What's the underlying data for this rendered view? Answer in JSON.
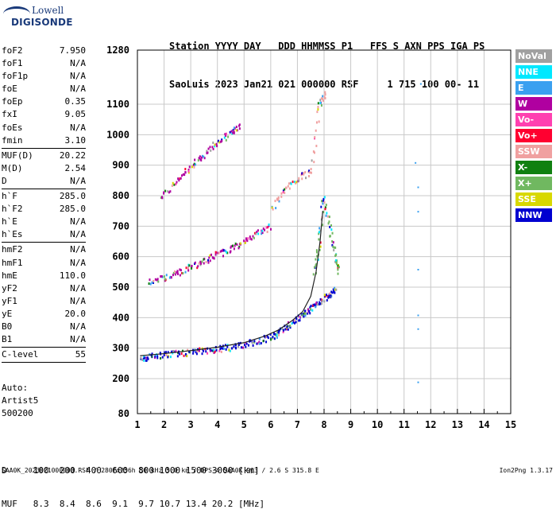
{
  "logo": {
    "line1": "Lowell",
    "line2": "DIGISONDE"
  },
  "header": {
    "line1": "Station YYYY DAY   DDD HHMMSS P1   FFS S AXN PPS IGA PS",
    "line2": "SaoLuis 2023 Jan21 021 000000 RSF     1 715 100 00- 11"
  },
  "params": {
    "group1": [
      {
        "name": "foF2",
        "value": "7.950"
      },
      {
        "name": "foF1",
        "value": "N/A"
      },
      {
        "name": "foF1p",
        "value": "N/A"
      },
      {
        "name": "foE",
        "value": "N/A"
      },
      {
        "name": "foEp",
        "value": "0.35"
      },
      {
        "name": "fxI",
        "value": "9.05"
      },
      {
        "name": "foEs",
        "value": "N/A"
      },
      {
        "name": "fmin",
        "value": "3.10"
      }
    ],
    "group2": [
      {
        "name": "MUF(D)",
        "value": "20.22"
      },
      {
        "name": "M(D)",
        "value": "2.54"
      },
      {
        "name": "D",
        "value": "N/A"
      }
    ],
    "group3": [
      {
        "name": "h`F",
        "value": "285.0"
      },
      {
        "name": "h`F2",
        "value": "285.0"
      },
      {
        "name": "h`E",
        "value": "N/A"
      },
      {
        "name": "h`Es",
        "value": "N/A"
      }
    ],
    "group4": [
      {
        "name": "hmF2",
        "value": "N/A"
      },
      {
        "name": "hmF1",
        "value": "N/A"
      },
      {
        "name": "hmE",
        "value": "110.0"
      },
      {
        "name": "yF2",
        "value": "N/A"
      },
      {
        "name": "yF1",
        "value": "N/A"
      },
      {
        "name": "yE",
        "value": "20.0"
      },
      {
        "name": "B0",
        "value": "N/A"
      },
      {
        "name": "B1",
        "value": "N/A"
      }
    ],
    "group5": [
      {
        "name": "C-level",
        "value": "55"
      }
    ]
  },
  "auto": {
    "line1": "Auto:",
    "line2": "Artist5",
    "line3": "500200"
  },
  "legend": [
    {
      "label": "NoVal",
      "color": "#a0a0a0"
    },
    {
      "label": "NNE",
      "color": "#00e8ff"
    },
    {
      "label": "E",
      "color": "#3aa0f0"
    },
    {
      "label": "W",
      "color": "#b000a0"
    },
    {
      "label": "Vo-",
      "color": "#ff40b0"
    },
    {
      "label": "Vo+",
      "color": "#ff0030"
    },
    {
      "label": "SSW",
      "color": "#f0a0a0"
    },
    {
      "label": "X-",
      "color": "#108010"
    },
    {
      "label": "X+",
      "color": "#70b860"
    },
    {
      "label": "SSE",
      "color": "#d8d800"
    },
    {
      "label": "NNW",
      "color": "#0000d0"
    }
  ],
  "muf_table": {
    "d_row": "D     100  200  400  600  800 1000 1500 3000 [km]",
    "muf_row": "MUF   8.3  8.4  8.6  9.1  9.7 10.7 13.4 20.2 [MHz]"
  },
  "footer": {
    "left": "SAA0K_2023021000000.RSF / 280fx256h 50 kHz 5.0 km / DPS-4 SAA0K 903 / 2.6 S 315.8 E",
    "right": "Ion2Png 1.3.17"
  },
  "chart_data": {
    "type": "scatter",
    "xlim": [
      1,
      15
    ],
    "ylim": [
      80,
      1280
    ],
    "x_ticks": [
      1,
      2,
      3,
      4,
      5,
      6,
      7,
      8,
      9,
      10,
      11,
      12,
      13,
      14,
      15
    ],
    "y_ticks": [
      80,
      200,
      300,
      400,
      500,
      600,
      700,
      800,
      900,
      1000,
      1100,
      1280
    ],
    "y_tick_labels": [
      "80",
      "200",
      "300",
      "400",
      "500",
      "600",
      "700",
      "800",
      "900",
      "1000",
      "1100",
      "1280"
    ],
    "grid": true,
    "traces": [
      {
        "points": [
          [
            1.1,
            270
          ],
          [
            1.5,
            275
          ],
          [
            2.0,
            280
          ],
          [
            2.5,
            285
          ],
          [
            3.0,
            290
          ],
          [
            3.5,
            295
          ],
          [
            4.0,
            300
          ],
          [
            4.5,
            305
          ],
          [
            5.0,
            315
          ],
          [
            5.5,
            325
          ],
          [
            6.0,
            340
          ],
          [
            6.3,
            355
          ],
          [
            6.6,
            375
          ],
          [
            7.0,
            400
          ],
          [
            7.3,
            420
          ],
          [
            7.6,
            440
          ],
          [
            7.9,
            460
          ],
          [
            8.2,
            480
          ],
          [
            8.4,
            500
          ]
        ],
        "color": "#0000d0"
      },
      {
        "points": [
          [
            1.4,
            520
          ],
          [
            2.0,
            535
          ],
          [
            2.5,
            550
          ],
          [
            3.0,
            570
          ],
          [
            3.5,
            590
          ],
          [
            4.0,
            610
          ],
          [
            4.5,
            630
          ],
          [
            5.0,
            650
          ],
          [
            5.5,
            680
          ],
          [
            6.0,
            705
          ]
        ],
        "color": "#b000a0"
      },
      {
        "points": [
          [
            1.8,
            790
          ],
          [
            2.5,
            850
          ],
          [
            3.0,
            900
          ],
          [
            3.5,
            940
          ],
          [
            4.0,
            980
          ],
          [
            4.5,
            1010
          ],
          [
            4.8,
            1030
          ]
        ],
        "color": "#b000a0"
      },
      {
        "points": [
          [
            6.0,
            760
          ],
          [
            6.5,
            820
          ],
          [
            7.0,
            860
          ],
          [
            7.5,
            880
          ],
          [
            7.8,
            1100
          ],
          [
            8.0,
            1140
          ]
        ],
        "color": "#f0a0a0"
      },
      {
        "points": [
          [
            7.6,
            550
          ],
          [
            7.8,
            650
          ],
          [
            7.95,
            800
          ],
          [
            8.2,
            700
          ],
          [
            8.4,
            600
          ],
          [
            8.5,
            550
          ]
        ],
        "color": "#70b860"
      }
    ],
    "curve": {
      "points": [
        [
          1.1,
          275
        ],
        [
          2,
          282
        ],
        [
          3,
          292
        ],
        [
          4,
          303
        ],
        [
          5,
          318
        ],
        [
          5.8,
          340
        ],
        [
          6.3,
          360
        ],
        [
          6.8,
          390
        ],
        [
          7.2,
          420
        ],
        [
          7.5,
          470
        ],
        [
          7.7,
          550
        ],
        [
          7.85,
          650
        ],
        [
          7.95,
          750
        ]
      ],
      "color": "#222222"
    }
  }
}
